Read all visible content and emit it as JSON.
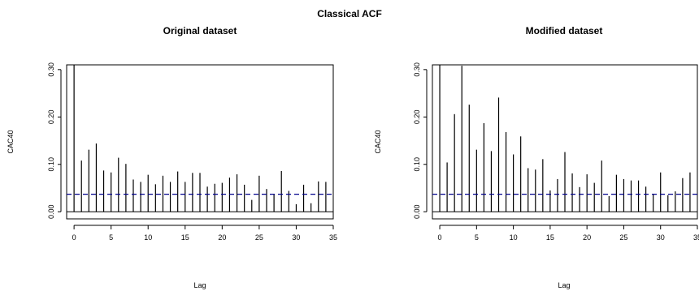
{
  "figure": {
    "title": "Classical ACF"
  },
  "chart_data": [
    {
      "type": "bar",
      "title": "Original dataset",
      "xlabel": "Lag",
      "ylabel": "CAC40",
      "xlim": [
        -1,
        35
      ],
      "ylim": [
        -0.015,
        0.31
      ],
      "xticks": [
        "0",
        "5",
        "10",
        "15",
        "20",
        "25",
        "30",
        "35"
      ],
      "yticks": [
        "0.00",
        "0.10",
        "0.20",
        "0.30"
      ],
      "confidence_line": 0.037,
      "confidence_color": "#00008b",
      "bar_color": "#000000",
      "x": [
        0,
        1,
        2,
        3,
        4,
        5,
        6,
        7,
        8,
        9,
        10,
        11,
        12,
        13,
        14,
        15,
        16,
        17,
        18,
        19,
        20,
        21,
        22,
        23,
        24,
        25,
        26,
        27,
        28,
        29,
        30,
        31,
        32,
        33,
        34
      ],
      "values": [
        0.31,
        0.108,
        0.131,
        0.144,
        0.087,
        0.083,
        0.114,
        0.101,
        0.068,
        0.063,
        0.078,
        0.058,
        0.076,
        0.063,
        0.085,
        0.063,
        0.082,
        0.082,
        0.053,
        0.059,
        0.061,
        0.072,
        0.079,
        0.057,
        0.025,
        0.076,
        0.048,
        0.038,
        0.086,
        0.044,
        0.016,
        0.057,
        0.018,
        0.064,
        0.063
      ]
    },
    {
      "type": "bar",
      "title": "Modified dataset",
      "xlabel": "Lag",
      "ylabel": "CAC40",
      "xlim": [
        -1,
        35
      ],
      "ylim": [
        -0.015,
        0.31
      ],
      "xticks": [
        "0",
        "5",
        "10",
        "15",
        "20",
        "25",
        "30",
        "35"
      ],
      "yticks": [
        "0.00",
        "0.10",
        "0.20",
        "0.30"
      ],
      "confidence_line": 0.037,
      "confidence_color": "#00008b",
      "bar_color": "#000000",
      "x": [
        0,
        1,
        2,
        3,
        4,
        5,
        6,
        7,
        8,
        9,
        10,
        11,
        12,
        13,
        14,
        15,
        16,
        17,
        18,
        19,
        20,
        21,
        22,
        23,
        24,
        25,
        26,
        27,
        28,
        29,
        30,
        31,
        32,
        33,
        34
      ],
      "values": [
        0.31,
        0.104,
        0.206,
        0.308,
        0.226,
        0.131,
        0.187,
        0.128,
        0.241,
        0.168,
        0.121,
        0.159,
        0.092,
        0.089,
        0.111,
        0.045,
        0.069,
        0.126,
        0.081,
        0.052,
        0.079,
        0.061,
        0.108,
        0.033,
        0.078,
        0.069,
        0.066,
        0.066,
        0.053,
        0.038,
        0.083,
        0.035,
        0.043,
        0.071,
        0.083
      ]
    }
  ]
}
